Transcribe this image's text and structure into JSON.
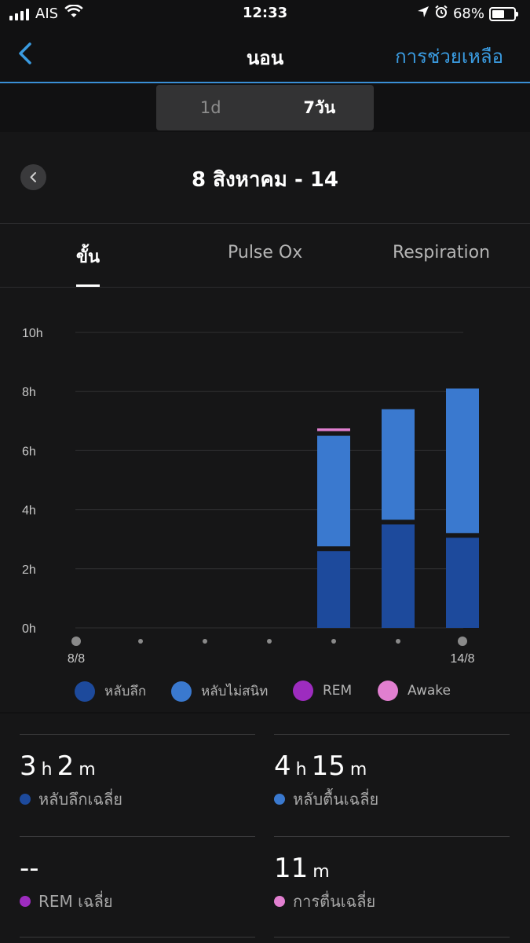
{
  "status": {
    "carrier": "AIS",
    "time": "12:33",
    "battery": "68%",
    "battery_level": 0.68
  },
  "nav": {
    "title": "นอน",
    "help": "การช่วยเหลือ"
  },
  "period": {
    "options": [
      "1d",
      "7วัน"
    ],
    "selected": "7วัน"
  },
  "date_range": "8 สิงหาคม - 14",
  "tabs": {
    "items": [
      "ขั้น",
      "Pulse Ox",
      "Respiration"
    ],
    "selected": "ขั้น"
  },
  "colors": {
    "deep": "#1d4a9c",
    "light": "#3a79cf",
    "rem": "#9d2cbf",
    "awake": "#e17fd0",
    "accent": "#3a9be0"
  },
  "chart_data": {
    "type": "bar",
    "stacked": true,
    "x": [
      "8/8",
      "9/8",
      "10/8",
      "11/8",
      "12/8",
      "13/8",
      "14/8"
    ],
    "x_tick_labels": [
      "8/8",
      "",
      "",
      "",
      "",
      "",
      "14/8"
    ],
    "y_ticks": [
      "0h",
      "2h",
      "4h",
      "6h",
      "8h",
      "10h"
    ],
    "ylim": [
      0,
      10
    ],
    "series": [
      {
        "name": "หลับลึก",
        "color": "#1d4a9c",
        "values": [
          0,
          0,
          0,
          0,
          2.6,
          3.5,
          3.05
        ]
      },
      {
        "name": "หลับไม่สนิท",
        "color": "#3a79cf",
        "values": [
          0,
          0,
          0,
          0,
          3.9,
          3.9,
          5.05
        ]
      },
      {
        "name": "REM",
        "color": "#9d2cbf",
        "values": [
          0,
          0,
          0,
          0,
          0,
          0,
          0
        ]
      },
      {
        "name": "Awake",
        "color": "#e17fd0",
        "values": [
          0,
          0,
          0,
          0,
          0.25,
          0.1,
          0.15
        ]
      }
    ],
    "grid": true,
    "legend": "bottom"
  },
  "stats": [
    {
      "h": "3",
      "h_unit": "h",
      "m": "2",
      "m_unit": "m",
      "label": "หลับลึกเฉลี่ย",
      "color": "#1d4a9c"
    },
    {
      "h": "4",
      "h_unit": "h",
      "m": "15",
      "m_unit": "m",
      "label": "หลับตื้นเฉลี่ย",
      "color": "#3a79cf"
    },
    {
      "value": "--",
      "label": "REM เฉลี่ย",
      "color": "#9d2cbf"
    },
    {
      "value": "11",
      "unit": "m",
      "label": "การตื่นเฉลี่ย",
      "color": "#e17fd0"
    }
  ]
}
